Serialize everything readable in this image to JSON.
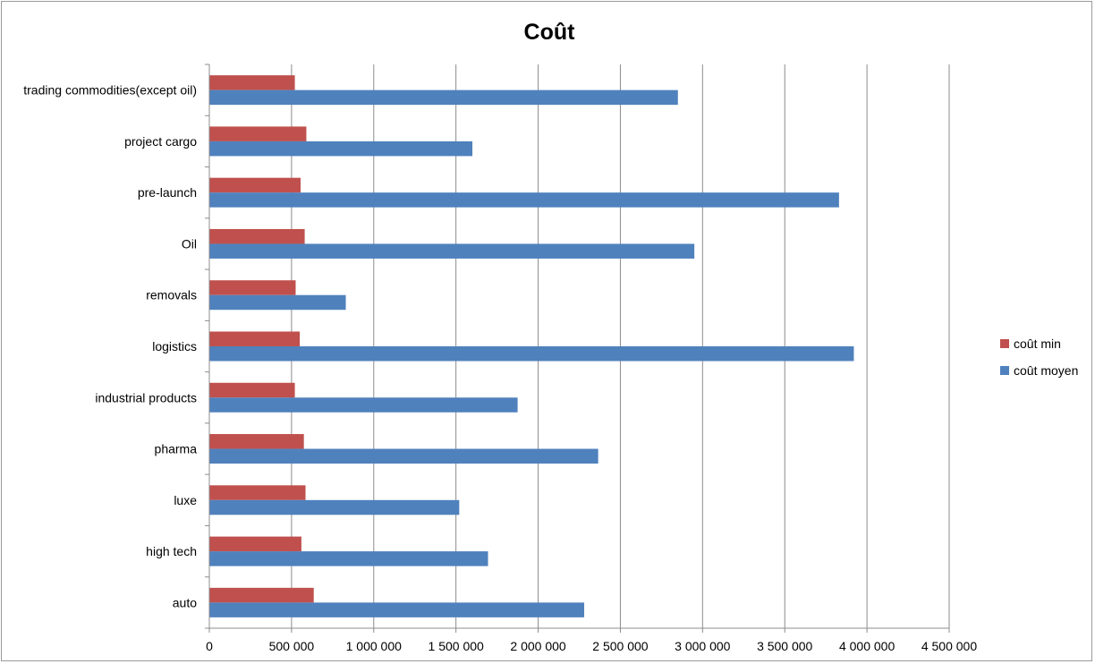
{
  "chart_data": {
    "type": "bar",
    "orientation": "horizontal",
    "title": "Coût",
    "categories": [
      "auto",
      "high tech",
      "luxe",
      "pharma",
      "industrial products",
      "logistics",
      "removals",
      "Oil",
      "pre-launch",
      "project cargo",
      "trading commodities(except oil)"
    ],
    "series": [
      {
        "name": "coût min",
        "color": "#c0504d",
        "values": [
          635000,
          560000,
          585000,
          575000,
          520000,
          550000,
          525000,
          580000,
          555000,
          590000,
          520000
        ]
      },
      {
        "name": "coût moyen",
        "color": "#4f81bd",
        "values": [
          2280000,
          1695000,
          1520000,
          2365000,
          1875000,
          3920000,
          830000,
          2950000,
          3830000,
          1600000,
          2850000
        ]
      }
    ],
    "xlim": [
      0,
      4500000
    ],
    "xticks": [
      0,
      500000,
      1000000,
      1500000,
      2000000,
      2500000,
      3000000,
      3500000,
      4000000,
      4500000
    ],
    "xtick_labels": [
      "0",
      "500 000",
      "1 000 000",
      "1 500 000",
      "2 000 000",
      "2 500 000",
      "3 000 000",
      "3 500 000",
      "4 000 000",
      "4 500 000"
    ],
    "grid": "vertical",
    "legend_position": "right"
  }
}
